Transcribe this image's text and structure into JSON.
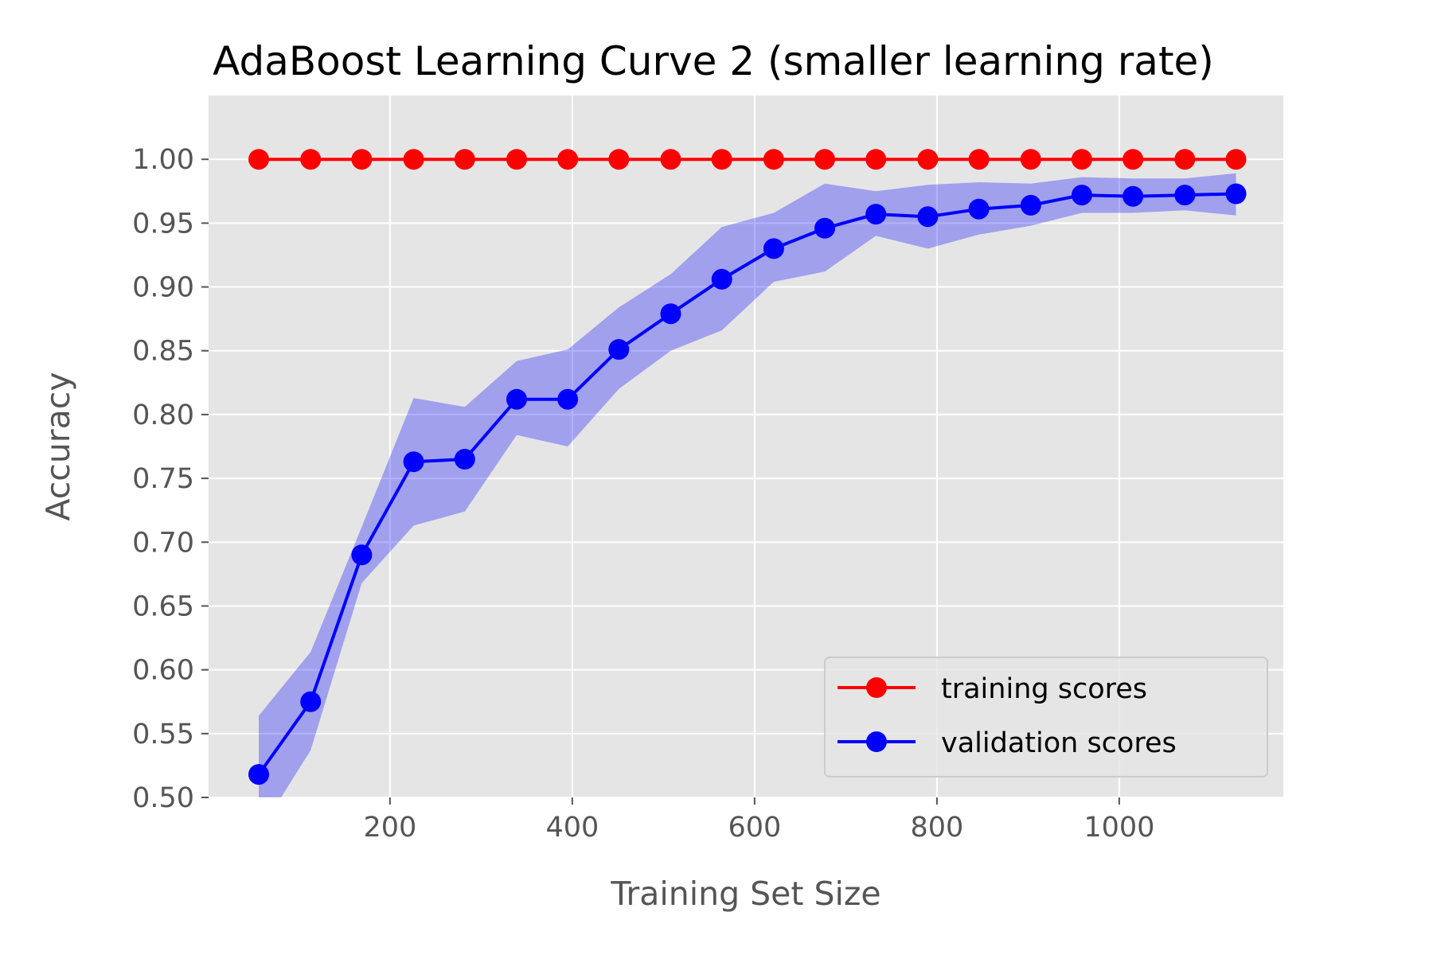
{
  "chart_data": {
    "type": "line",
    "title": "AdaBoost Learning Curve 2 (smaller learning rate)",
    "xlabel": "Training Set Size",
    "ylabel": "Accuracy",
    "xlim": [
      1,
      1180
    ],
    "ylim": [
      0.5,
      1.05
    ],
    "xticks": [
      200,
      400,
      600,
      800,
      1000
    ],
    "xtick_labels": [
      "200",
      "400",
      "600",
      "800",
      "1000"
    ],
    "yticks": [
      0.5,
      0.55,
      0.6,
      0.65,
      0.7,
      0.75,
      0.8,
      0.85,
      0.9,
      0.95,
      1.0
    ],
    "ytick_labels": [
      "0.50",
      "0.55",
      "0.60",
      "0.65",
      "0.70",
      "0.75",
      "0.80",
      "0.85",
      "0.90",
      "0.95",
      "1.00"
    ],
    "grid": true,
    "legend_position": "lower-right",
    "background_color": "#e5e5e5",
    "grid_color": "#ffffff",
    "x": [
      56,
      113,
      169,
      226,
      282,
      339,
      395,
      451,
      508,
      564,
      621,
      677,
      733,
      790,
      846,
      903,
      959,
      1015,
      1072,
      1128
    ],
    "series": [
      {
        "name": "training scores",
        "color": "#ff0000",
        "marker": "circle",
        "values": [
          1.0,
          1.0,
          1.0,
          1.0,
          1.0,
          1.0,
          1.0,
          1.0,
          1.0,
          1.0,
          1.0,
          1.0,
          1.0,
          1.0,
          1.0,
          1.0,
          1.0,
          1.0,
          1.0,
          1.0
        ]
      },
      {
        "name": "validation scores",
        "color": "#0000ff",
        "band_color": "#0000ff",
        "marker": "circle",
        "values": [
          0.518,
          0.575,
          0.69,
          0.763,
          0.765,
          0.812,
          0.812,
          0.851,
          0.879,
          0.906,
          0.93,
          0.946,
          0.957,
          0.955,
          0.961,
          0.964,
          0.972,
          0.971,
          0.972,
          0.973
        ],
        "lower": [
          0.472,
          0.537,
          0.668,
          0.713,
          0.724,
          0.784,
          0.775,
          0.82,
          0.85,
          0.866,
          0.904,
          0.912,
          0.94,
          0.93,
          0.941,
          0.948,
          0.958,
          0.958,
          0.96,
          0.956
        ],
        "upper": [
          0.564,
          0.614,
          0.712,
          0.813,
          0.806,
          0.842,
          0.851,
          0.884,
          0.91,
          0.947,
          0.958,
          0.981,
          0.975,
          0.98,
          0.982,
          0.981,
          0.986,
          0.985,
          0.985,
          0.989
        ]
      }
    ]
  }
}
